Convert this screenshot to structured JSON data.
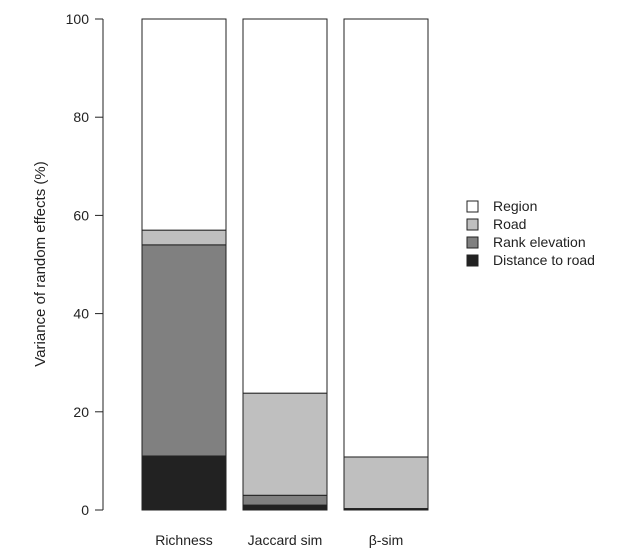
{
  "chart_data": {
    "type": "bar",
    "stacked": true,
    "title": "",
    "xlabel": "",
    "ylabel": "Variance of random effects (%)",
    "ylim": [
      0,
      100
    ],
    "yticks": [
      0,
      20,
      40,
      60,
      80,
      100
    ],
    "categories": [
      "Richness",
      "Jaccard sim",
      "β-sim"
    ],
    "series": [
      {
        "name": "Distance to road",
        "color": "#222222",
        "values": [
          11,
          1,
          0.3
        ]
      },
      {
        "name": "Rank elevation",
        "color": "#808080",
        "values": [
          43,
          2,
          0
        ]
      },
      {
        "name": "Road",
        "color": "#bfbfbf",
        "values": [
          3,
          20.8,
          10.5
        ]
      },
      {
        "name": "Region",
        "color": "#ffffff",
        "values": [
          43,
          76.2,
          89.2
        ]
      }
    ],
    "legend": {
      "position": "right",
      "order": [
        "Region",
        "Road",
        "Rank elevation",
        "Distance to road"
      ]
    },
    "grid": false
  }
}
